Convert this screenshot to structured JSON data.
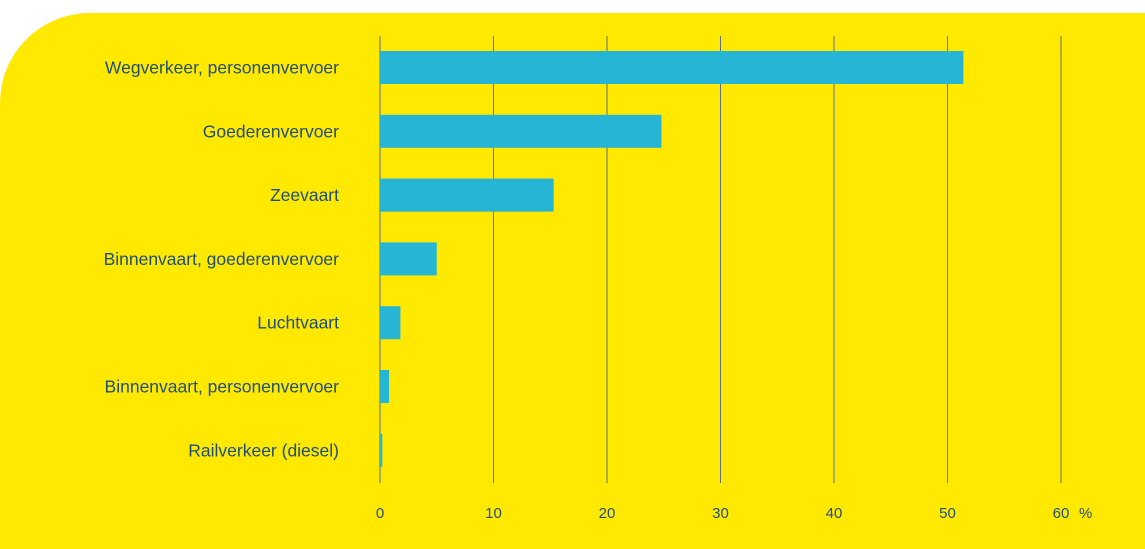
{
  "colors": {
    "background": "#ffe900",
    "bar": "#27b5d6",
    "text": "#1f4e79",
    "grid": "#5b6e86"
  },
  "chart_data": {
    "type": "bar",
    "orientation": "horizontal",
    "title": "",
    "xlabel": "",
    "ylabel": "",
    "unit": "%",
    "categories": [
      "Wegverkeer, personenvervoer",
      "Goederenvervoer",
      "Zeevaart",
      "Binnenvaart, goederenvervoer",
      "Luchtvaart",
      "Binnenvaart, personenvervoer",
      "Railverkeer (diesel)"
    ],
    "values": [
      51.4,
      24.8,
      15.3,
      5.0,
      1.8,
      0.8,
      0.2
    ],
    "xlim": [
      0,
      60
    ],
    "ticks": [
      0,
      10,
      20,
      30,
      40,
      50,
      60
    ],
    "grid": true,
    "legend": "none"
  }
}
